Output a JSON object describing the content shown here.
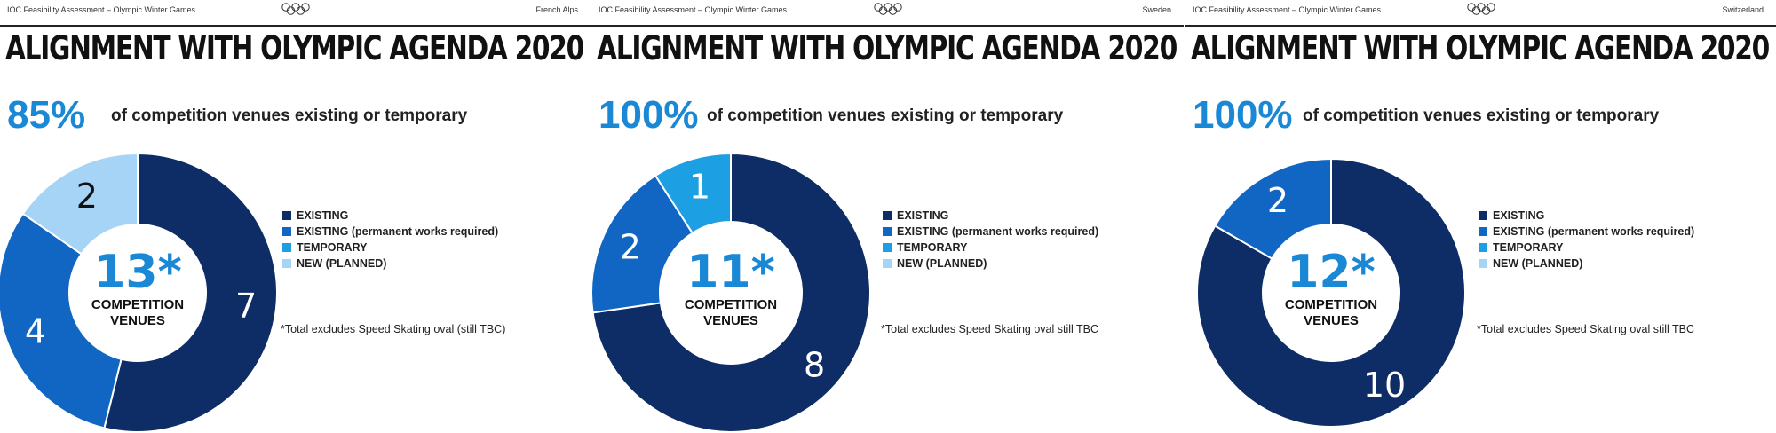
{
  "legend": [
    {
      "label": "EXISTING",
      "color": "#0e2d66"
    },
    {
      "label": "EXISTING (permanent works required)",
      "color": "#1066c2"
    },
    {
      "label": "TEMPORARY",
      "color": "#1d9fe3"
    },
    {
      "label": "NEW (PLANNED)",
      "color": "#a6d4f7"
    }
  ],
  "chart_data": [
    {
      "type": "pie",
      "header_left": "IOC Feasibility Assessment – Olympic Winter Games",
      "header_right": "French Alps",
      "title": "ALIGNMENT WITH OLYMPIC AGENDA 2020",
      "stat_value": "85%",
      "stat_text": "of competition venues existing or temporary",
      "center_value": "13*",
      "center_caption": [
        "COMPETITION",
        "VENUES"
      ],
      "footnote": "*Total excludes Speed Skating oval (still TBC)",
      "categories": [
        "EXISTING",
        "EXISTING (permanent works required)",
        "TEMPORARY",
        "NEW (PLANNED)"
      ],
      "values": [
        7,
        4,
        0,
        2
      ]
    },
    {
      "type": "pie",
      "header_left": "IOC Feasibility Assessment – Olympic Winter Games",
      "header_right": "Sweden",
      "title": "ALIGNMENT WITH OLYMPIC AGENDA 2020",
      "stat_value": "100%",
      "stat_text": "of competition venues existing or temporary",
      "center_value": "11*",
      "center_caption": [
        "COMPETITION",
        "VENUES"
      ],
      "footnote": "*Total excludes Speed Skating oval still TBC",
      "categories": [
        "EXISTING",
        "EXISTING (permanent works required)",
        "TEMPORARY",
        "NEW (PLANNED)"
      ],
      "values": [
        8,
        2,
        1,
        0
      ]
    },
    {
      "type": "pie",
      "header_left": "IOC Feasibility Assessment – Olympic Winter Games",
      "header_right": "Switzerland",
      "title": "ALIGNMENT WITH OLYMPIC AGENDA 2020",
      "stat_value": "100%",
      "stat_text": "of competition venues existing or temporary",
      "center_value": "12*",
      "center_caption": [
        "COMPETITION",
        "VENUES"
      ],
      "footnote": "*Total excludes Speed Skating oval still TBC",
      "categories": [
        "EXISTING",
        "EXISTING (permanent works required)",
        "TEMPORARY",
        "NEW (PLANNED)"
      ],
      "values": [
        10,
        2,
        0,
        0
      ]
    }
  ]
}
